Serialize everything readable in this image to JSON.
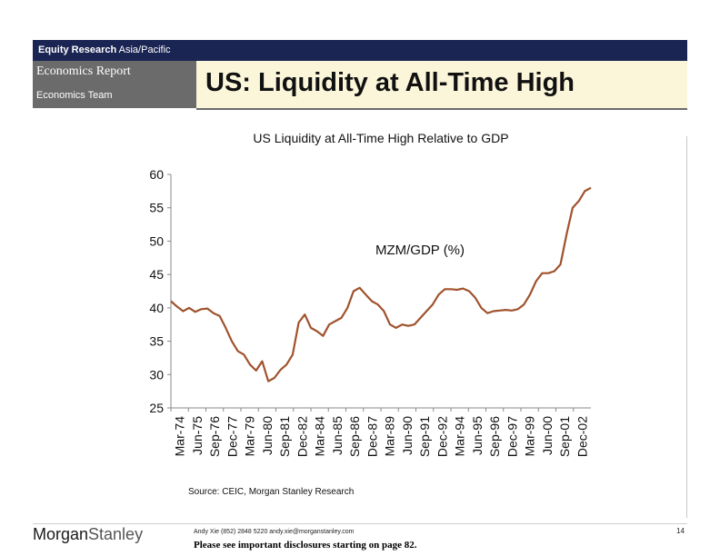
{
  "header": {
    "dept_bold": "Equity Research",
    "region": "Asia/Pacific",
    "report_type": "Economics Report",
    "team": "Economics Team",
    "title": "US: Liquidity at All-Time High"
  },
  "colors": {
    "header_navy": "#1b2553",
    "sidebar_gray": "#6b6b6b",
    "title_bg": "#fbf6d9",
    "series_line": "#a0522d"
  },
  "chart_data": {
    "type": "line",
    "title": "US Liquidity at All-Time High Relative to GDP",
    "xlabel": "",
    "ylabel": "",
    "ylim": [
      25,
      60
    ],
    "yticks": [
      25,
      30,
      35,
      40,
      45,
      50,
      55,
      60
    ],
    "grid": false,
    "annotation": "MZM/GDP (%)",
    "tick_labels": [
      "Mar-74",
      "Jun-75",
      "Sep-76",
      "Dec-77",
      "Mar-79",
      "Jun-80",
      "Sep-81",
      "Dec-82",
      "Mar-84",
      "Jun-85",
      "Sep-86",
      "Dec-87",
      "Mar-89",
      "Jun-90",
      "Sep-91",
      "Dec-92",
      "Mar-94",
      "Jun-95",
      "Sep-96",
      "Dec-97",
      "Mar-99",
      "Jun-00",
      "Sep-01",
      "Dec-02"
    ],
    "x_start": "Mar-74",
    "x_end": "Mar-03",
    "series": [
      {
        "values": [
          41.0,
          40.2,
          39.5,
          40.0,
          39.4,
          39.8,
          39.9,
          39.2,
          38.8,
          37.0,
          35.0,
          33.5,
          33.0,
          31.5,
          30.6,
          32.0,
          29.0,
          29.5,
          30.7,
          31.5,
          33.0,
          37.8,
          39.0,
          37.0,
          36.5,
          35.8,
          37.5,
          38.0,
          38.5,
          40.0,
          42.5,
          43.0,
          42.0,
          41.0,
          40.5,
          39.5,
          37.5,
          37.0,
          37.5,
          37.3,
          37.5,
          38.5,
          39.5,
          40.5,
          42.0,
          42.8,
          42.8,
          42.7,
          42.9,
          42.5,
          41.5,
          40.0,
          39.2,
          39.5,
          39.6,
          39.7,
          39.6,
          39.8,
          40.5,
          42.0,
          44.0,
          45.2,
          45.2,
          45.5,
          46.5,
          51.0,
          55.0,
          56.0,
          57.5,
          58.0
        ]
      }
    ]
  },
  "source": "Source: CEIC, Morgan Stanley Research",
  "footer": {
    "logo_main": "Morgan",
    "logo_light": "Stanley",
    "contact": "Andy Xie (852) 2848 5220  andy.xie@morganstanley.com",
    "disclosure": "Please see important disclosures starting on page 82.",
    "page_number": "14"
  }
}
